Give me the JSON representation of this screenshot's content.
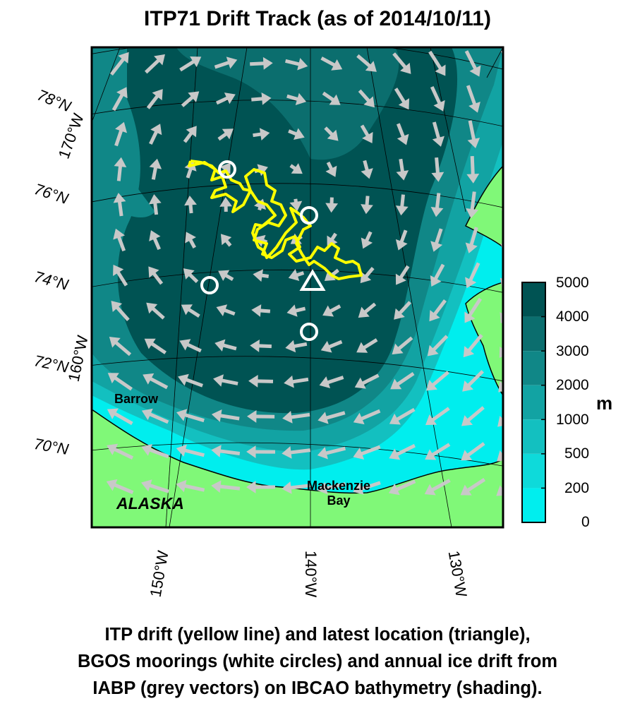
{
  "title": "ITP71 Drift Track (as of 2014/10/11)",
  "caption": [
    "ITP drift (yellow line) and latest location (triangle),",
    "BGOS moorings (white circles) and annual ice drift from",
    "IABP (grey vectors) on IBCAO bathymetry (shading)."
  ],
  "map": {
    "lat_labels": [
      "78°N",
      "76°N",
      "74°N",
      "72°N",
      "70°N"
    ],
    "lon_labels_left": [
      "170°W",
      "160°W"
    ],
    "lon_labels_bottom": [
      "150°W",
      "140°W",
      "130°W"
    ],
    "places": {
      "barrow": "Barrow",
      "alaska": "ALASKA",
      "mackenzie": "Mackenzie Bay"
    },
    "markers": {
      "moorings": "BGOS moorings (white circles)",
      "latest": "latest location (triangle)"
    },
    "colors": {
      "land": "#80f878",
      "track": "#ffff00",
      "vectors": "#c8c8c8",
      "markers": "#ffffff"
    }
  },
  "colorbar": {
    "unit": "m",
    "levels": [
      "5000",
      "4000",
      "3000",
      "2000",
      "1000",
      "500",
      "200",
      "0"
    ],
    "colors": [
      "#005353",
      "#0b6e6e",
      "#108787",
      "#12a3a3",
      "#13c0c0",
      "#0edada",
      "#00eeee"
    ]
  }
}
